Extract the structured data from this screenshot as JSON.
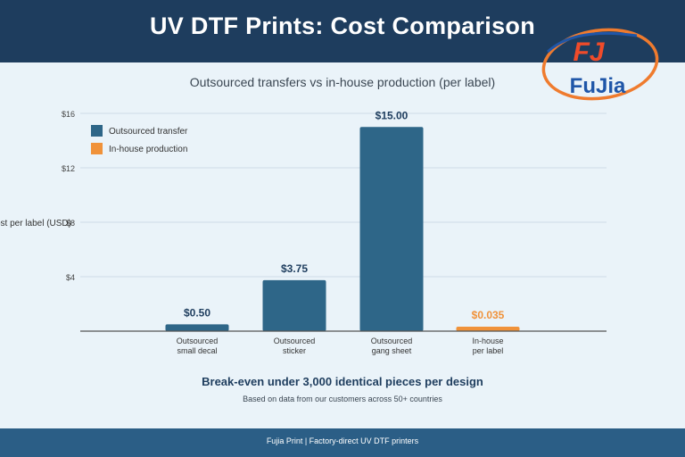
{
  "header": {
    "title": "UV DTF Prints: Cost Comparison"
  },
  "logo": {
    "text": "FuJia",
    "mark": "FJ",
    "colors": {
      "ring": "#ef7b2e",
      "text": "#1f56a8",
      "mark": "#ef4b2a"
    }
  },
  "subtitle": "Outsourced transfers vs in-house production (per label)",
  "chart_data": {
    "type": "bar",
    "ylabel": "Cost per label (USD)",
    "ylim": [
      0,
      16
    ],
    "yticks": [
      {
        "value": 4,
        "label": "$4"
      },
      {
        "value": 8,
        "label": "$8"
      },
      {
        "value": 12,
        "label": "$12"
      },
      {
        "value": 16,
        "label": "$16"
      }
    ],
    "grid": true,
    "legend_position": "top-left",
    "legend": [
      {
        "label": "Outsourced transfer",
        "color": "#2e6688"
      },
      {
        "label": "In-house production",
        "color": "#f0923a"
      }
    ],
    "bars": [
      {
        "category": [
          "Outsourced",
          "small decal"
        ],
        "value": 0.5,
        "label": "$0.50",
        "group": 0
      },
      {
        "category": [
          "Outsourced",
          "sticker"
        ],
        "value": 3.75,
        "label": "$3.75",
        "group": 0
      },
      {
        "category": [
          "Outsourced",
          "gang sheet"
        ],
        "value": 15.0,
        "label": "$15.00",
        "group": 0
      },
      {
        "category": [
          "In-house",
          "per label"
        ],
        "value": 0.035,
        "label": "$0.035",
        "group": 1
      }
    ]
  },
  "headline": "Break-even under 3,000 identical pieces per design",
  "note": "Based on data from our customers across 50+ countries",
  "footer": {
    "text": "Fujia Print  |  Factory-direct UV DTF printers"
  }
}
